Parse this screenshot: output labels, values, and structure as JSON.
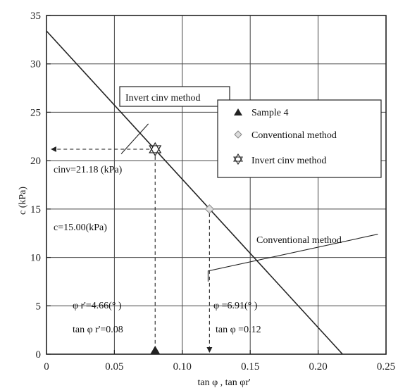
{
  "chart_data": {
    "type": "scatter",
    "xlabel": "tan φ , tan φr'",
    "ylabel": "c (kPa)",
    "xlim": [
      0,
      0.25
    ],
    "ylim": [
      0,
      35
    ],
    "x_ticks": [
      "0",
      "0.05",
      "0.10",
      "0.15",
      "0.20",
      "0.25"
    ],
    "y_ticks": [
      "0",
      "5",
      "10",
      "15",
      "20",
      "25",
      "30",
      "35"
    ],
    "grid": true,
    "legend_position": "right",
    "series": [
      {
        "name": "Sample 4",
        "marker": "triangle",
        "points": [
          [
            0.08,
            0
          ]
        ]
      },
      {
        "name": "Conventional method",
        "marker": "diamond",
        "points": [
          [
            0.12,
            15.0
          ]
        ]
      },
      {
        "name": "Invert cinv method",
        "marker": "star",
        "points": [
          [
            0.08,
            21.18
          ]
        ]
      }
    ],
    "line": {
      "x": [
        0,
        0.218
      ],
      "y": [
        33.4,
        0
      ]
    },
    "annotations": {
      "callout_invert": "Invert cinv method",
      "callout_conventional": "Conventional method",
      "cinv_value": "cinv=21.18 (kPa)",
      "c_value": "c=15.00(kPa)",
      "phi_r_angle": "φ r'=4.66(° )",
      "phi_r_tan": "tan φ r'=0.08",
      "phi_angle": "φ =6.91(° )",
      "phi_tan": "tan φ =0.12"
    }
  }
}
